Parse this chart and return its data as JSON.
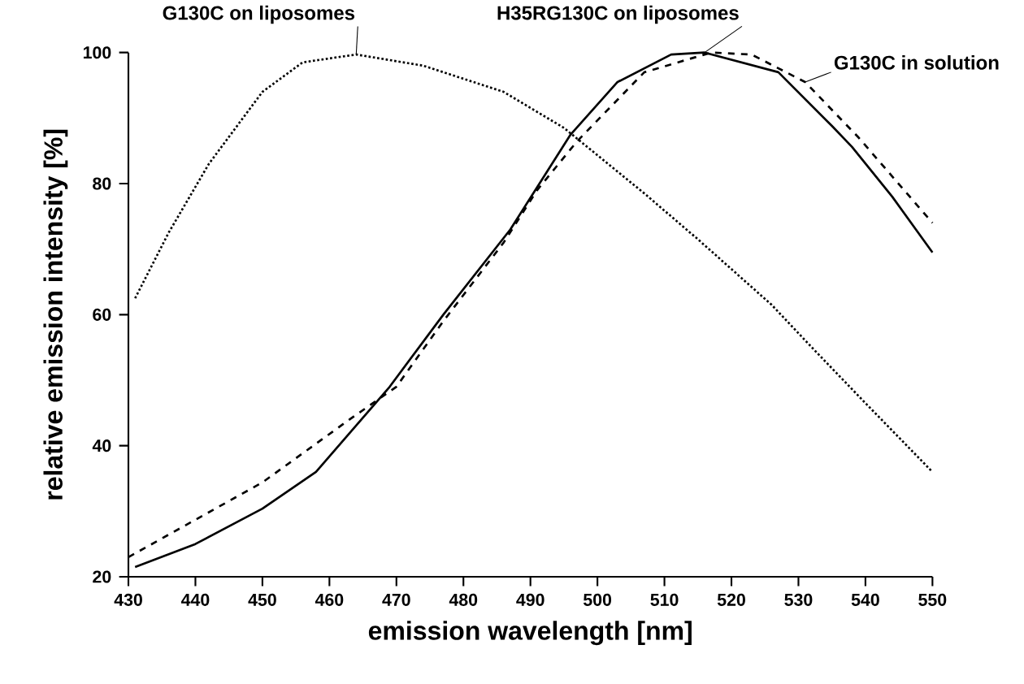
{
  "chart_data": {
    "type": "line",
    "xlabel": "emission wavelength [nm]",
    "ylabel": "relative emission intensity [%]",
    "xlim": [
      430,
      550
    ],
    "xticks": [
      430,
      440,
      450,
      460,
      470,
      480,
      490,
      500,
      510,
      520,
      530,
      540,
      550
    ],
    "ylim": [
      20,
      100
    ],
    "yticks": [
      20,
      40,
      60,
      80,
      100
    ],
    "grid": false,
    "legend": false,
    "marker": "none",
    "series": [
      {
        "name": "G130C on liposomes",
        "color": "#000000",
        "line_style": "dotted",
        "x": [
          431,
          436,
          442,
          450,
          456,
          464,
          474,
          486,
          495,
          507,
          515,
          526,
          532,
          540,
          550
        ],
        "values": [
          62.5,
          72.5,
          83,
          94,
          98.5,
          99.7,
          98,
          94,
          88.5,
          78.5,
          71.5,
          61.5,
          55,
          46.5,
          36
        ]
      },
      {
        "name": "H35RG130C on liposomes",
        "color": "#000000",
        "line_style": "solid",
        "x": [
          431,
          440,
          450,
          458,
          469,
          477,
          487,
          496,
          503,
          511,
          516,
          527,
          535,
          538,
          544,
          550
        ],
        "values": [
          21.5,
          25,
          30.4,
          36,
          49,
          60,
          73,
          87.5,
          95.5,
          99.7,
          100,
          97,
          88.8,
          85.6,
          78,
          69.5
        ]
      },
      {
        "name": "G130C in solution",
        "color": "#000000",
        "line_style": "dashed",
        "x": [
          430,
          450,
          463,
          470,
          477,
          486,
          491,
          497,
          507,
          517,
          523,
          531,
          539,
          550
        ],
        "values": [
          23,
          34.4,
          44,
          49,
          59,
          71,
          79,
          86.5,
          97,
          100,
          99.7,
          95.5,
          87,
          74
        ]
      }
    ]
  }
}
